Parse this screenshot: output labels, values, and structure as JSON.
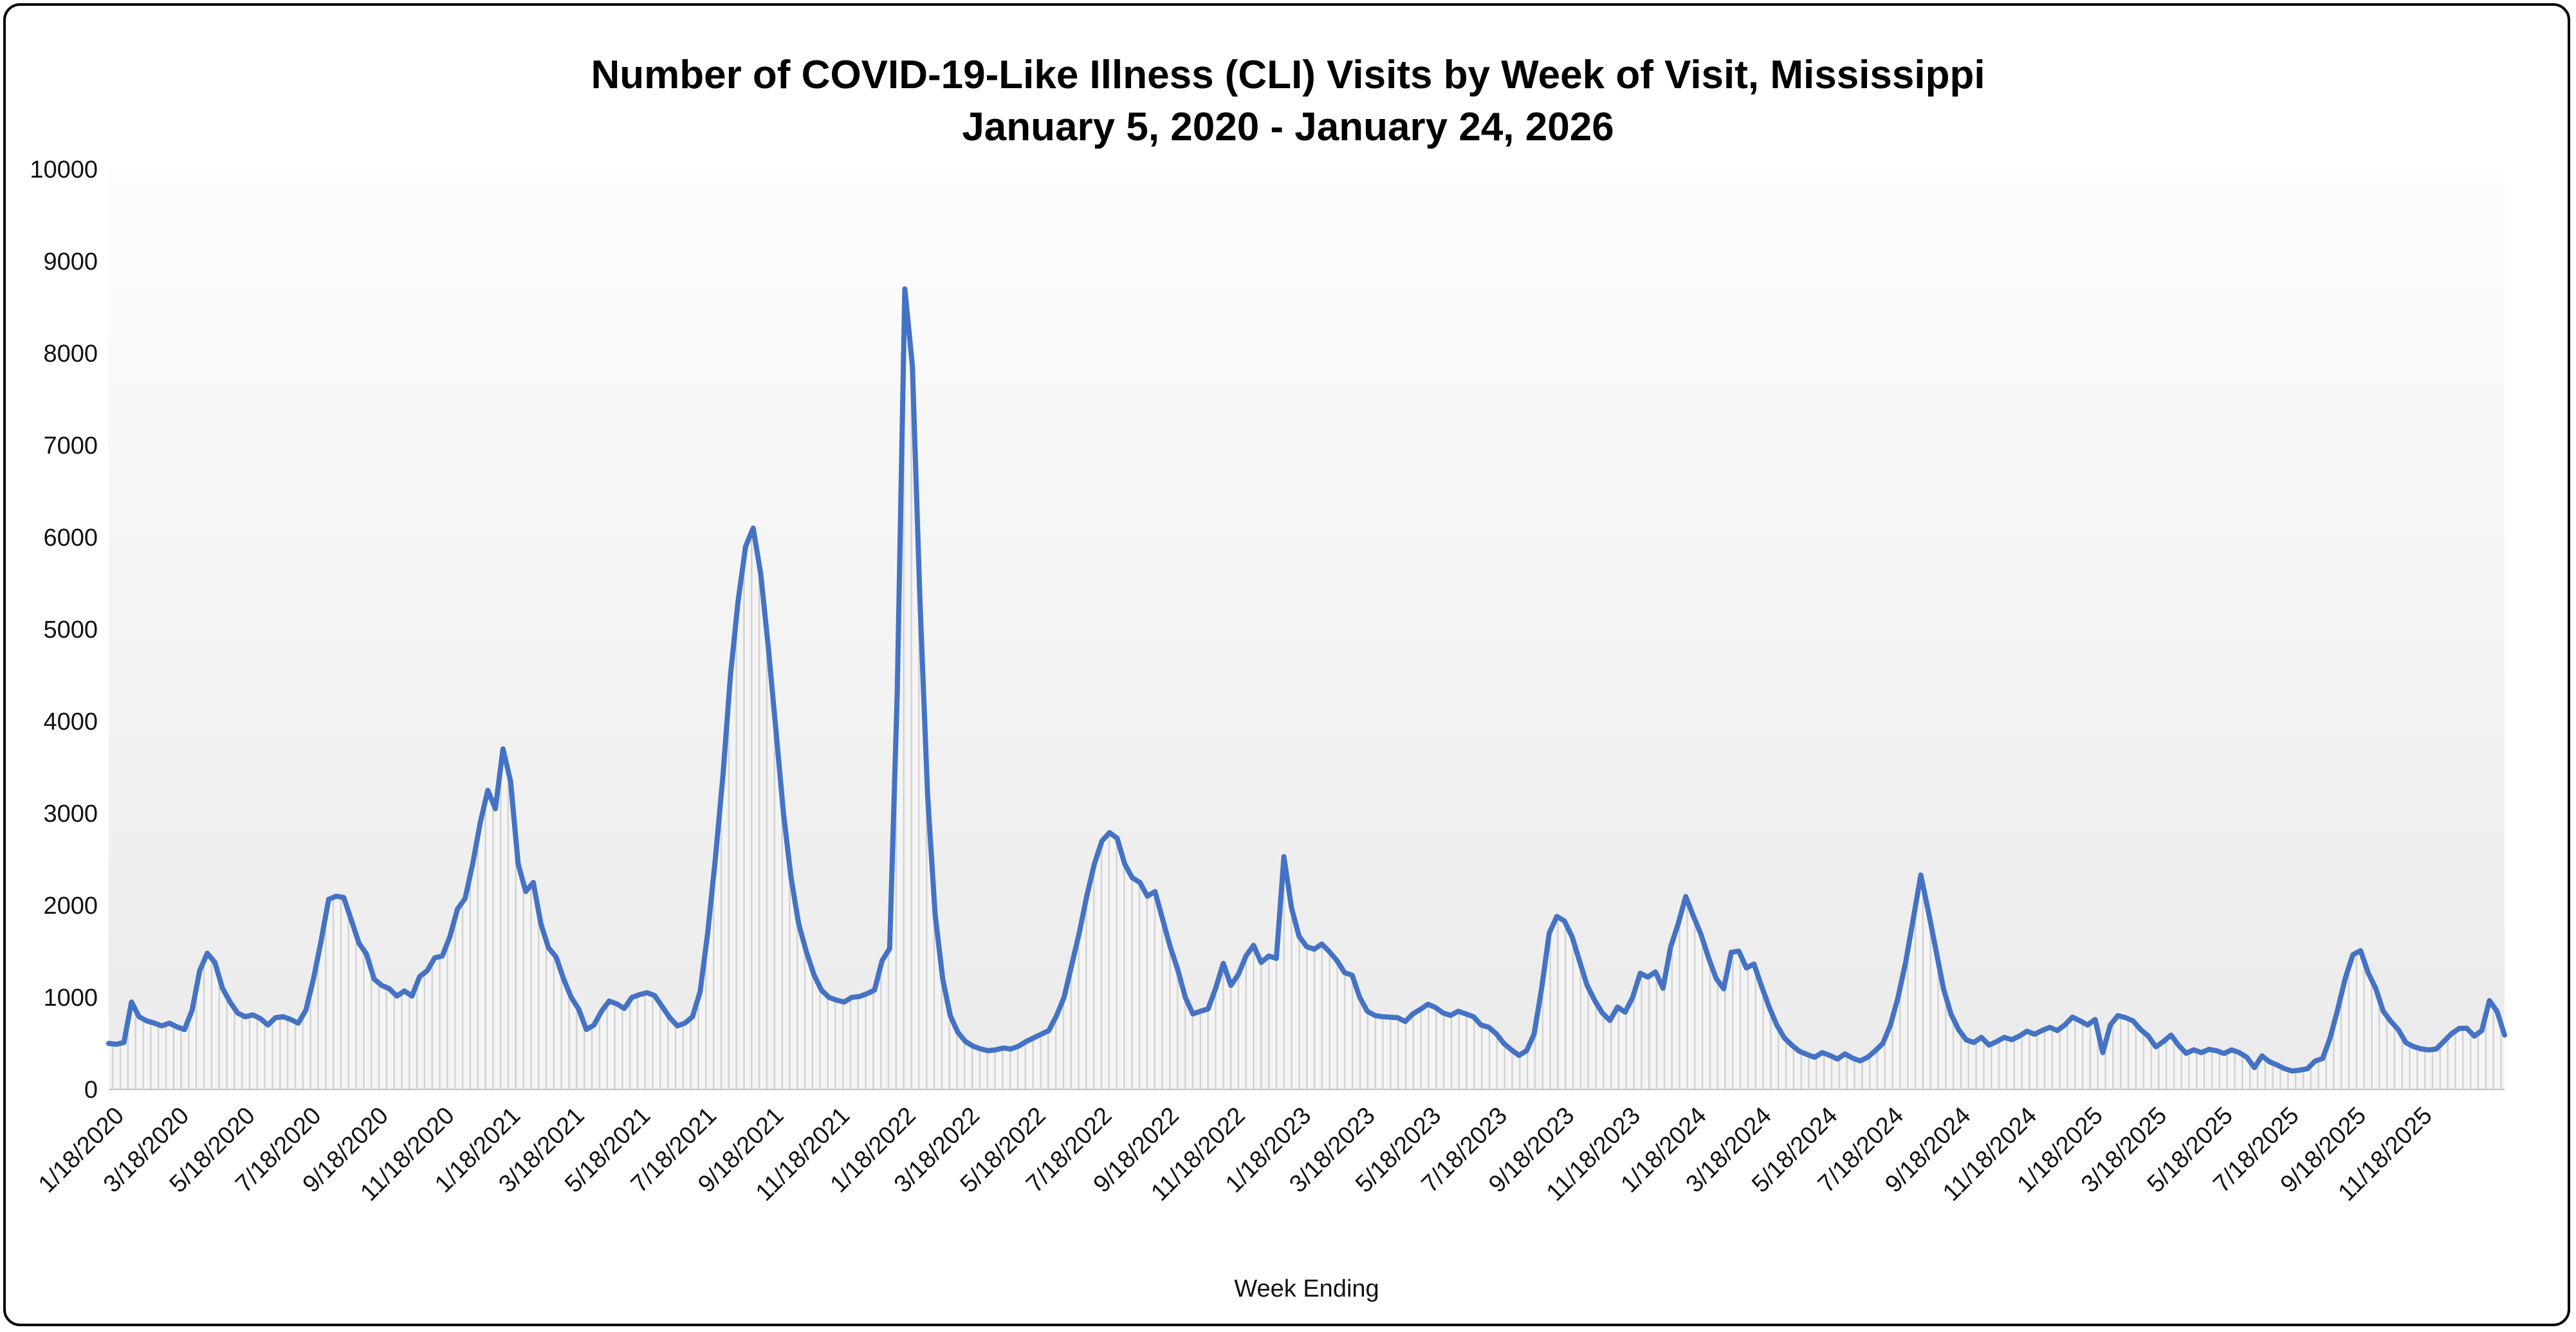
{
  "title": {
    "line1": "Number of COVID-19-Like Illness (CLI) Visits by Week of Visit, Mississippi",
    "line2": "January 5, 2020 - January 24, 2026"
  },
  "y_axis": {
    "min": 0,
    "max": 10000,
    "step": 1000,
    "tick_labels": [
      "0",
      "1000",
      "2000",
      "3000",
      "4000",
      "5000",
      "6000",
      "7000",
      "8000",
      "9000",
      "10000"
    ]
  },
  "x_axis": {
    "title": "Week Ending",
    "tick_labels": [
      "1/18/2020",
      "3/18/2020",
      "5/18/2020",
      "7/18/2020",
      "9/18/2020",
      "11/18/2020",
      "1/18/2021",
      "3/18/2021",
      "5/18/2021",
      "7/18/2021",
      "9/18/2021",
      "11/18/2021",
      "1/18/2022",
      "3/18/2022",
      "5/18/2022",
      "7/18/2022",
      "9/18/2022",
      "11/18/2022",
      "1/18/2023",
      "3/18/2023",
      "5/18/2023",
      "7/18/2023",
      "9/18/2023",
      "11/18/2023",
      "1/18/2024",
      "3/18/2024",
      "5/18/2024",
      "7/18/2024",
      "9/18/2024",
      "11/18/2024",
      "1/18/2025",
      "3/18/2025",
      "5/18/2025",
      "7/18/2025",
      "9/18/2025",
      "11/18/2025"
    ]
  },
  "colors": {
    "line": "#4472C4",
    "drop_line": "#d4d4d4",
    "under_fill": "#f4f4f4",
    "plot_bg_top": "#fdfdfd",
    "plot_bg_bottom": "#eaeaea",
    "baseline": "#c8c8c8",
    "frame_border": "#000000"
  },
  "chart_data": {
    "type": "line",
    "title": "Number of COVID-19-Like Illness (CLI) Visits by Week of Visit, Mississippi January 5, 2020 - January 24, 2026",
    "xlabel": "Week Ending",
    "ylabel": "",
    "ylim": [
      0,
      10000
    ],
    "grid": false,
    "legend": "none",
    "x_mode": "weekly",
    "first_week_ending": "2020-01-11",
    "last_week_ending": "2026-01-24",
    "series": [
      {
        "name": "CLI visits",
        "color": "#4472C4",
        "values": [
          500,
          490,
          510,
          950,
          790,
          745,
          720,
          690,
          720,
          680,
          650,
          860,
          1290,
          1480,
          1380,
          1100,
          950,
          830,
          790,
          810,
          770,
          700,
          780,
          790,
          760,
          720,
          860,
          1200,
          1610,
          2065,
          2100,
          2085,
          1840,
          1590,
          1470,
          1200,
          1130,
          1095,
          1015,
          1070,
          1015,
          1225,
          1290,
          1430,
          1450,
          1660,
          1960,
          2075,
          2450,
          2900,
          3250,
          3050,
          3700,
          3350,
          2450,
          2150,
          2250,
          1800,
          1540,
          1440,
          1200,
          1000,
          870,
          650,
          700,
          850,
          960,
          930,
          880,
          1000,
          1030,
          1050,
          1020,
          900,
          780,
          690,
          720,
          790,
          1060,
          1700,
          2500,
          3400,
          4500,
          5300,
          5900,
          6100,
          5600,
          4800,
          3900,
          3000,
          2300,
          1800,
          1500,
          1250,
          1080,
          1000,
          970,
          950,
          1000,
          1010,
          1040,
          1080,
          1400,
          1530,
          4300,
          8700,
          7860,
          5300,
          3200,
          1900,
          1200,
          800,
          620,
          520,
          470,
          440,
          420,
          430,
          450,
          440,
          470,
          520,
          560,
          600,
          640,
          800,
          1000,
          1350,
          1700,
          2100,
          2450,
          2700,
          2790,
          2730,
          2450,
          2300,
          2250,
          2100,
          2150,
          1850,
          1550,
          1300,
          1000,
          820,
          850,
          875,
          1100,
          1370,
          1130,
          1250,
          1450,
          1566,
          1380,
          1450,
          1424,
          2530,
          1975,
          1664,
          1551,
          1524,
          1580,
          1495,
          1400,
          1270,
          1242,
          1000,
          850,
          803,
          790,
          785,
          780,
          737,
          820,
          870,
          926,
          890,
          830,
          805,
          850,
          820,
          790,
          700,
          676,
          606,
          500,
          430,
          370,
          420,
          600,
          1100,
          1700,
          1880,
          1830,
          1660,
          1390,
          1130,
          965,
          830,
          750,
          895,
          840,
          1000,
          1263,
          1220,
          1277,
          1100,
          1546,
          1800,
          2096,
          1885,
          1687,
          1433,
          1207,
          1093,
          1490,
          1503,
          1320,
          1362,
          1121,
          895,
          700,
          560,
          480,
          414,
          380,
          350,
          400,
          370,
          330,
          386,
          340,
          310,
          350,
          420,
          500,
          700,
          1000,
          1380,
          1850,
          2330,
          1932,
          1516,
          1093,
          815,
          648,
          538,
          510,
          566,
          482,
          520,
          566,
          540,
          580,
          632,
          600,
          640,
          675,
          640,
          700,
          786,
          745,
          700,
          760,
          400,
          700,
          802,
          780,
          745,
          650,
          580,
          463,
          520,
          590,
          480,
          392,
          430,
          400,
          435,
          420,
          390,
          430,
          400,
          350,
          237,
          364,
          300,
          265,
          225,
          200,
          210,
          225,
          308,
          336,
          562,
          872,
          1211,
          1465,
          1508,
          1268,
          1098,
          850,
          740,
          647,
          506,
          464,
          440,
          429,
          440,
          522,
          605,
          662,
          665,
          580,
          640,
          965,
          850,
          590
        ]
      }
    ]
  }
}
